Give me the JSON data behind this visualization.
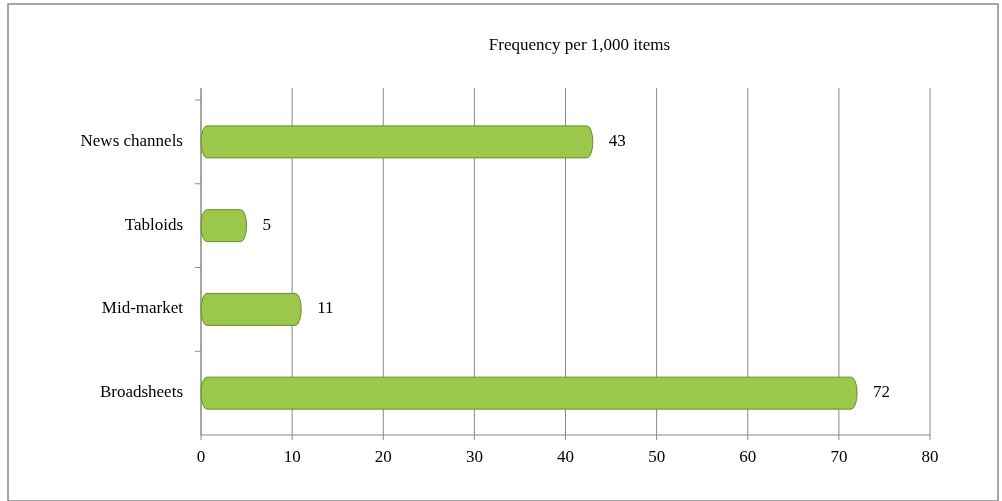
{
  "chart_data": {
    "type": "bar",
    "orientation": "horizontal",
    "title": "Frequency per 1,000 items",
    "categories": [
      "News channels",
      "Tabloids",
      "Mid-market",
      "Broadsheets"
    ],
    "values": [
      43,
      5,
      11,
      72
    ],
    "color": "#9bc84a",
    "xlim": [
      0,
      80
    ],
    "xticks": [
      0,
      10,
      20,
      30,
      40,
      50,
      60,
      70,
      80
    ],
    "grid": "x",
    "data_labels": true
  }
}
